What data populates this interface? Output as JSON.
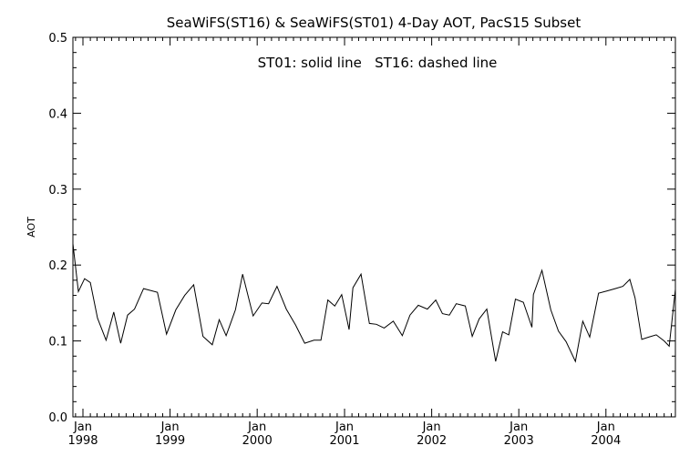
{
  "chart_data": {
    "type": "line",
    "title": "SeaWiFS(ST16) & SeaWiFS(ST01) 4-Day AOT, PacS15 Subset",
    "annotation": "ST01: solid line   ST16: dashed line",
    "ylabel": "AOT",
    "xlabel": "",
    "ylim": [
      0.0,
      0.5
    ],
    "xlim": [
      "1997-11-20",
      "2004-10-18"
    ],
    "yticks": [
      {
        "value": 0.0,
        "label": "0.0"
      },
      {
        "value": 0.1,
        "label": "0.1"
      },
      {
        "value": 0.2,
        "label": "0.2"
      },
      {
        "value": 0.3,
        "label": "0.3"
      },
      {
        "value": 0.4,
        "label": "0.4"
      },
      {
        "value": 0.5,
        "label": "0.5"
      }
    ],
    "xticks": [
      {
        "date": "1998-01-01",
        "month": "Jan",
        "year": "1998"
      },
      {
        "date": "1999-01-01",
        "month": "Jan",
        "year": "1999"
      },
      {
        "date": "2000-01-01",
        "month": "Jan",
        "year": "2000"
      },
      {
        "date": "2001-01-01",
        "month": "Jan",
        "year": "2001"
      },
      {
        "date": "2002-01-01",
        "month": "Jan",
        "year": "2002"
      },
      {
        "date": "2003-01-01",
        "month": "Jan",
        "year": "2003"
      },
      {
        "date": "2004-01-01",
        "month": "Jan",
        "year": "2004"
      }
    ],
    "series": [
      {
        "name": "ST01",
        "style": "solid",
        "color": "#000000",
        "points": [
          [
            "1997-11-20",
            0.228
          ],
          [
            "1997-12-13",
            0.165
          ],
          [
            "1998-01-08",
            0.182
          ],
          [
            "1998-02-01",
            0.177
          ],
          [
            "1998-03-03",
            0.13
          ],
          [
            "1998-04-08",
            0.101
          ],
          [
            "1998-05-10",
            0.138
          ],
          [
            "1998-06-08",
            0.097
          ],
          [
            "1998-07-07",
            0.134
          ],
          [
            "1998-08-05",
            0.142
          ],
          [
            "1998-09-12",
            0.169
          ],
          [
            "1998-11-09",
            0.164
          ],
          [
            "1998-12-17",
            0.109
          ],
          [
            "1999-01-25",
            0.141
          ],
          [
            "1999-03-03",
            0.16
          ],
          [
            "1999-04-10",
            0.174
          ],
          [
            "1999-05-19",
            0.106
          ],
          [
            "1999-06-27",
            0.095
          ],
          [
            "1999-07-26",
            0.128
          ],
          [
            "1999-08-24",
            0.107
          ],
          [
            "1999-10-02",
            0.141
          ],
          [
            "1999-11-01",
            0.188
          ],
          [
            "1999-12-15",
            0.133
          ],
          [
            "2000-01-21",
            0.15
          ],
          [
            "2000-02-18",
            0.149
          ],
          [
            "2000-03-24",
            0.172
          ],
          [
            "2000-05-02",
            0.142
          ],
          [
            "2000-06-10",
            0.121
          ],
          [
            "2000-07-18",
            0.097
          ],
          [
            "2000-08-26",
            0.101
          ],
          [
            "2000-09-24",
            0.101
          ],
          [
            "2000-10-23",
            0.154
          ],
          [
            "2000-11-21",
            0.146
          ],
          [
            "2000-12-20",
            0.161
          ],
          [
            "2001-01-20",
            0.115
          ],
          [
            "2001-02-05",
            0.17
          ],
          [
            "2001-03-11",
            0.188
          ],
          [
            "2001-04-15",
            0.123
          ],
          [
            "2001-05-14",
            0.122
          ],
          [
            "2001-06-16",
            0.117
          ],
          [
            "2001-07-24",
            0.126
          ],
          [
            "2001-08-31",
            0.107
          ],
          [
            "2001-10-02",
            0.134
          ],
          [
            "2001-11-06",
            0.147
          ],
          [
            "2001-12-14",
            0.142
          ],
          [
            "2002-01-18",
            0.154
          ],
          [
            "2002-02-15",
            0.136
          ],
          [
            "2002-03-16",
            0.134
          ],
          [
            "2002-04-14",
            0.149
          ],
          [
            "2002-05-22",
            0.146
          ],
          [
            "2002-06-20",
            0.106
          ],
          [
            "2002-07-19",
            0.129
          ],
          [
            "2002-08-20",
            0.142
          ],
          [
            "2002-09-26",
            0.073
          ],
          [
            "2002-10-25",
            0.112
          ],
          [
            "2002-11-20",
            0.108
          ],
          [
            "2002-12-18",
            0.155
          ],
          [
            "2003-01-20",
            0.151
          ],
          [
            "2003-02-25",
            0.118
          ],
          [
            "2003-03-03",
            0.161
          ],
          [
            "2003-04-08",
            0.193
          ],
          [
            "2003-05-15",
            0.141
          ],
          [
            "2003-06-16",
            0.113
          ],
          [
            "2003-07-18",
            0.099
          ],
          [
            "2003-08-26",
            0.073
          ],
          [
            "2003-09-26",
            0.126
          ],
          [
            "2003-10-25",
            0.105
          ],
          [
            "2003-12-01",
            0.163
          ],
          [
            "2004-01-06",
            0.166
          ],
          [
            "2004-02-09",
            0.169
          ],
          [
            "2004-03-12",
            0.172
          ],
          [
            "2004-04-10",
            0.181
          ],
          [
            "2004-05-02",
            0.157
          ],
          [
            "2004-05-30",
            0.102
          ],
          [
            "2004-06-28",
            0.105
          ],
          [
            "2004-07-30",
            0.108
          ],
          [
            "2004-09-01",
            0.1
          ],
          [
            "2004-09-22",
            0.093
          ],
          [
            "2004-10-18",
            0.168
          ]
        ]
      }
    ],
    "grid": false,
    "legend": "none"
  }
}
